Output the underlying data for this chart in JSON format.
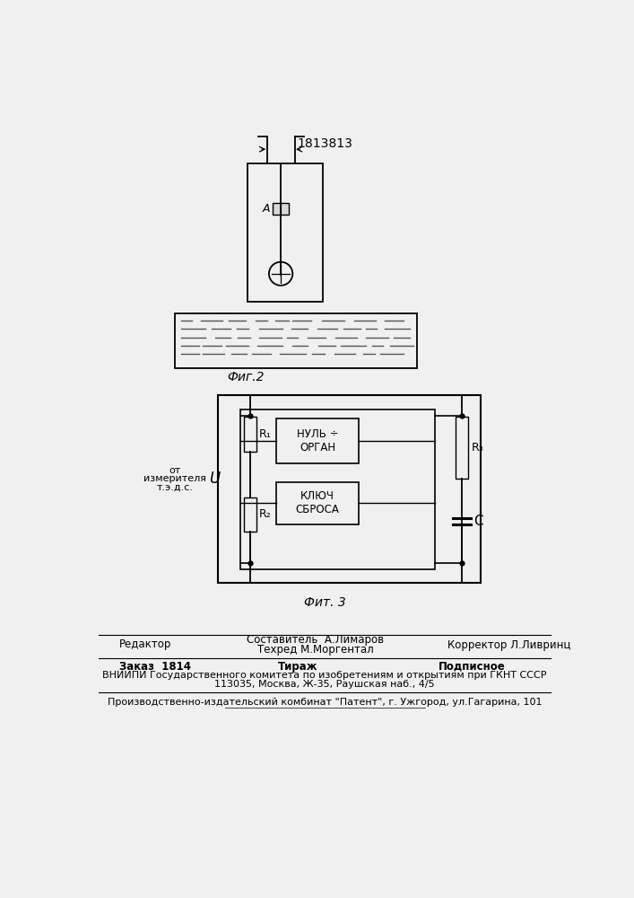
{
  "patent_number": "1813813",
  "fig2_caption": "Фиг.2",
  "fig3_caption": "Фит. 3",
  "label_A": "A",
  "label_U": "U",
  "label_R1": "R₁",
  "label_R2": "R₂",
  "label_R3": "R₃",
  "label_C": "C",
  "label_null_organ": "НУЛЬ ÷\nОРГАН",
  "label_klyuch": "КЛЮЧ\nСБРОСА",
  "label_from_measurer_line1": "от",
  "label_from_measurer_line2": "измерителя",
  "label_from_measurer_line3": "т.э.д.с.",
  "footer_editor": "Редактор",
  "footer_compiler": "Составитель  А.Лимаров",
  "footer_techred": "Техред М.Моргентал",
  "footer_corrector": "Корректор Л.Ливринц",
  "footer_order": "Заказ  1814",
  "footer_tirazh": "Тираж",
  "footer_podpisnoe": "Подписное",
  "footer_vniiipi": "ВНИИПИ Государственного комитета по изобретениям и открытиям при ГКНТ СССР",
  "footer_address": "113035, Москва, Ж-35, Раушская наб., 4/5",
  "footer_publisher": "Производственно-издательский комбинат \"Патент\", г. Ужгород, ул.Гагарина, 101",
  "bg_color": "#f0f0f0"
}
